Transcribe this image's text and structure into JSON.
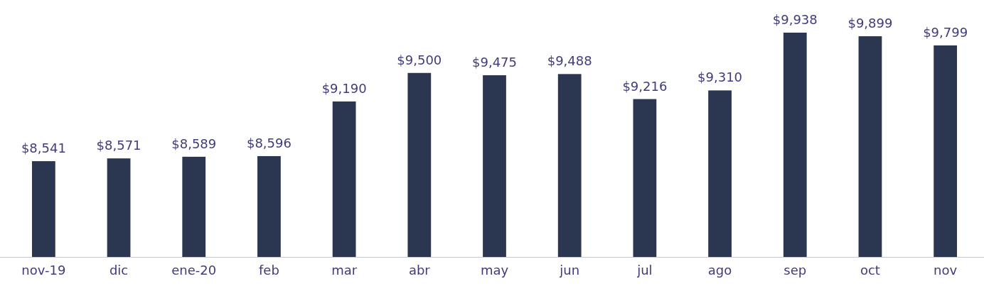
{
  "chart_data": {
    "type": "bar",
    "categories": [
      "nov-19",
      "dic",
      "ene-20",
      "feb",
      "mar",
      "abr",
      "may",
      "jun",
      "jul",
      "ago",
      "sep",
      "oct",
      "nov"
    ],
    "values": [
      8541,
      8571,
      8589,
      8596,
      9190,
      9500,
      9475,
      9488,
      9216,
      9310,
      9938,
      9899,
      9799
    ],
    "value_labels": [
      "$8,541",
      "$8,571",
      "$8,589",
      "$8,596",
      "$9,190",
      "$9,500",
      "$9,475",
      "$9,488",
      "$9,216",
      "$9,310",
      "$9,938",
      "$9,899",
      "$9,799"
    ],
    "color": "#2b3650",
    "ylim": [
      7500,
      9938
    ],
    "tick_labels": "x",
    "grid": false
  }
}
